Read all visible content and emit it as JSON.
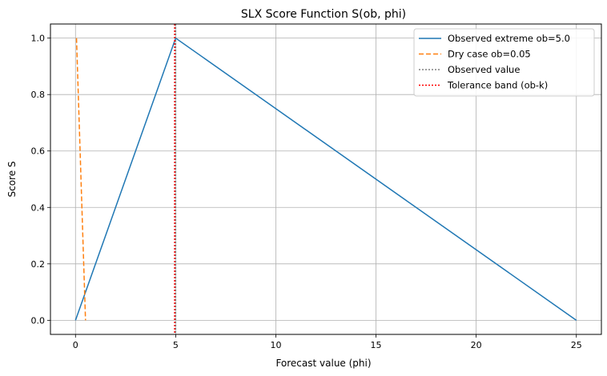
{
  "chart_data": {
    "type": "line",
    "title": "SLX Score Function S(ob, phi)",
    "xlabel": "Forecast value (phi)",
    "ylabel": "Score S",
    "xlim": [
      -1.25,
      26.25
    ],
    "ylim": [
      -0.05,
      1.05
    ],
    "xticks": [
      0,
      5,
      10,
      15,
      20,
      25
    ],
    "yticks": [
      0.0,
      0.2,
      0.4,
      0.6,
      0.8,
      1.0
    ],
    "xtick_labels": [
      "0",
      "5",
      "10",
      "15",
      "20",
      "25"
    ],
    "ytick_labels": [
      "0.0",
      "0.2",
      "0.4",
      "0.6",
      "0.8",
      "1.0"
    ],
    "grid": true,
    "legend_position": "top-right",
    "series": [
      {
        "name": "Observed extreme ob=5.0",
        "style": "solid",
        "color": "#1f77b4",
        "x": [
          0,
          5,
          25
        ],
        "y": [
          0.0,
          1.0,
          0.0
        ]
      },
      {
        "name": "Dry case ob=0.05",
        "style": "dashed",
        "color": "#ff7f0e",
        "x": [
          0.05,
          0.5
        ],
        "y": [
          1.0,
          0.0
        ]
      }
    ],
    "vlines": [
      {
        "name": "Observed value",
        "x": 5.0,
        "style": "dotted",
        "color": "#808080"
      },
      {
        "name": "Tolerance band (ob-k)",
        "x": 4.95,
        "style": "dotted",
        "color": "#ff0000"
      }
    ]
  }
}
